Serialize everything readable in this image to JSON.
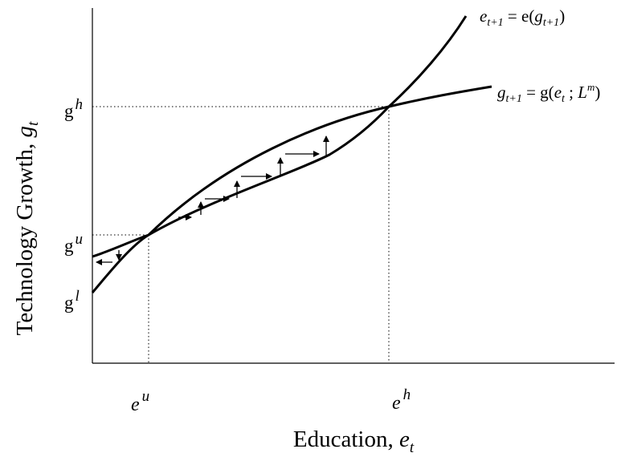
{
  "y_axis_label": {
    "main": "Technology Growth, ",
    "var": "g",
    "sub": "t"
  },
  "x_axis_label": {
    "main": "Education, ",
    "var": "e",
    "sub": "t"
  },
  "y_ticks": {
    "gh": {
      "base": "g",
      "sup": "h"
    },
    "gu": {
      "base": "g",
      "sup": "u"
    },
    "gl": {
      "base": "g",
      "sup": "l"
    }
  },
  "x_ticks": {
    "eu": {
      "base": "e",
      "sup": "u"
    },
    "eh": {
      "base": "e",
      "sup": "h"
    }
  },
  "curve_e": {
    "lhs": "e",
    "lhs_sub": "t+1",
    "eq": " = e(",
    "arg": "g",
    "arg_sub": "t+1",
    "close": ")"
  },
  "curve_g": {
    "lhs": "g",
    "lhs_sub": "t+1",
    "eq": " = g(",
    "arg": "e",
    "arg_sub": "t",
    "mid": " ; ",
    "param": "L",
    "param_sup": "m",
    "close": ")"
  },
  "colors": {
    "line": "#000000",
    "guide": "#000000",
    "background": "#ffffff"
  }
}
